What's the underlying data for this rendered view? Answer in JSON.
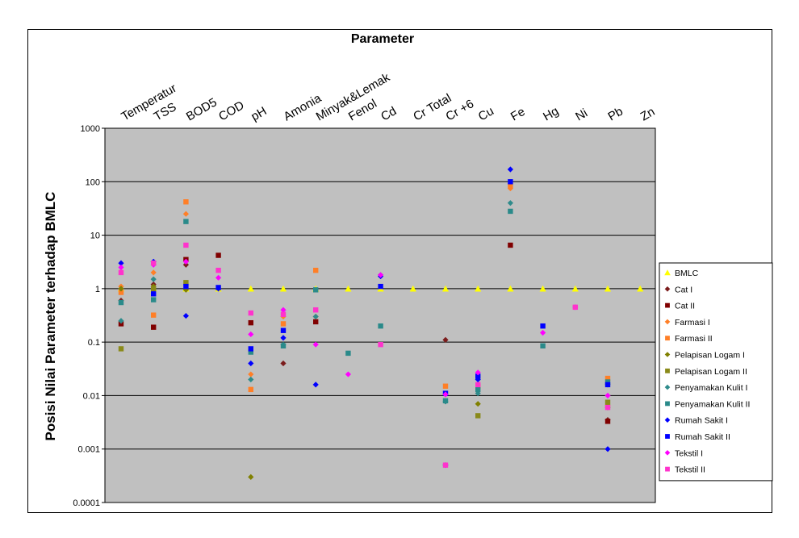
{
  "chart_data": {
    "type": "scatter",
    "title": "Parameter",
    "xlabel": "",
    "ylabel": "Posisi Nilai Parameter terhadap BMLC",
    "yscale": "log",
    "ylim": [
      0.0001,
      1000
    ],
    "yticks": [
      "0.0001",
      "0.001",
      "0.01",
      "0.1",
      "1",
      "10",
      "100",
      "1000"
    ],
    "grid": true,
    "legend_position": "right",
    "categories": [
      "Temperatur",
      "TSS",
      "BOD5",
      "COD",
      "pH",
      "Amonia",
      "Minyak&Lemak",
      "Fenol",
      "Cd",
      "Cr Total",
      "Cr +6",
      "Cu",
      "Fe",
      "Hg",
      "Ni",
      "Pb",
      "Zn"
    ],
    "series": [
      {
        "name": "BMLC",
        "color": "#ffff00",
        "marker": "triangle",
        "values": [
          1,
          1,
          1,
          1,
          1,
          1,
          1,
          1,
          1,
          1,
          1,
          1,
          1,
          1,
          1,
          1,
          1
        ]
      },
      {
        "name": "Cat I",
        "color": "#7b1c1c",
        "marker": "diamond",
        "values": [
          0.6,
          1.2,
          2.8,
          null,
          null,
          0.04,
          null,
          null,
          null,
          null,
          0.11,
          null,
          null,
          null,
          null,
          0.0035,
          null
        ]
      },
      {
        "name": "Cat II",
        "color": "#800000",
        "marker": "square",
        "values": [
          0.22,
          0.19,
          3.5,
          4.2,
          0.23,
          null,
          0.24,
          null,
          null,
          null,
          null,
          null,
          6.5,
          null,
          null,
          0.0033,
          null
        ]
      },
      {
        "name": "Farmasi I",
        "color": "#ff7f27",
        "marker": "diamond",
        "values": [
          1.1,
          2.0,
          25,
          null,
          0.025,
          0.3,
          0.3,
          null,
          null,
          null,
          null,
          null,
          75,
          null,
          null,
          0.0065,
          null
        ]
      },
      {
        "name": "Farmasi II",
        "color": "#ff7f27",
        "marker": "square",
        "values": [
          0.85,
          0.32,
          42,
          null,
          0.013,
          0.22,
          2.2,
          null,
          null,
          null,
          0.015,
          0.015,
          85,
          null,
          null,
          0.021,
          null
        ]
      },
      {
        "name": "Pelapisan Logam I",
        "color": "#808000",
        "marker": "diamond",
        "values": [
          1.0,
          1.1,
          0.95,
          null,
          0.0003,
          null,
          null,
          null,
          null,
          null,
          null,
          0.007,
          null,
          null,
          null,
          0.006,
          null
        ]
      },
      {
        "name": "Pelapisan Logam II",
        "color": "#8a8a1a",
        "marker": "square",
        "values": [
          0.075,
          1.0,
          1.3,
          null,
          null,
          null,
          null,
          null,
          null,
          null,
          null,
          0.0042,
          null,
          null,
          null,
          0.0075,
          null
        ]
      },
      {
        "name": "Penyamakan Kulit I",
        "color": "#2e8b8b",
        "marker": "diamond",
        "values": [
          0.25,
          1.5,
          null,
          null,
          0.02,
          0.09,
          0.3,
          null,
          1.8,
          null,
          0.0077,
          0.011,
          40,
          null,
          null,
          0.016,
          null
        ]
      },
      {
        "name": "Penyamakan Kulit II",
        "color": "#2a8a8a",
        "marker": "square",
        "values": [
          0.55,
          0.62,
          18,
          null,
          0.065,
          0.085,
          0.95,
          0.062,
          0.2,
          null,
          0.008,
          0.013,
          28,
          0.085,
          null,
          0.018,
          null
        ]
      },
      {
        "name": "Rumah Sakit I",
        "color": "#0000ff",
        "marker": "diamond",
        "values": [
          3.0,
          3.2,
          0.31,
          1.0,
          0.04,
          0.12,
          0.016,
          null,
          1.7,
          null,
          0.0005,
          0.02,
          170,
          null,
          null,
          0.001,
          null
        ]
      },
      {
        "name": "Rumah Sakit II",
        "color": "#0000ff",
        "marker": "square",
        "values": [
          null,
          0.8,
          1.1,
          1.05,
          0.075,
          0.165,
          null,
          null,
          1.1,
          null,
          0.011,
          0.023,
          100,
          0.2,
          null,
          0.016,
          null
        ]
      },
      {
        "name": "Tekstil I",
        "color": "#ff00ff",
        "marker": "diamond",
        "values": [
          2.5,
          2.8,
          3.2,
          1.6,
          0.14,
          0.4,
          0.09,
          0.025,
          1.8,
          null,
          0.0105,
          0.027,
          null,
          0.15,
          0.45,
          0.01,
          null
        ]
      },
      {
        "name": "Tekstil II",
        "color": "#ff33cc",
        "marker": "square",
        "values": [
          2.0,
          3.0,
          6.5,
          2.2,
          0.35,
          0.33,
          0.4,
          null,
          0.09,
          null,
          0.0005,
          0.016,
          null,
          null,
          0.45,
          0.006,
          null
        ]
      }
    ]
  }
}
